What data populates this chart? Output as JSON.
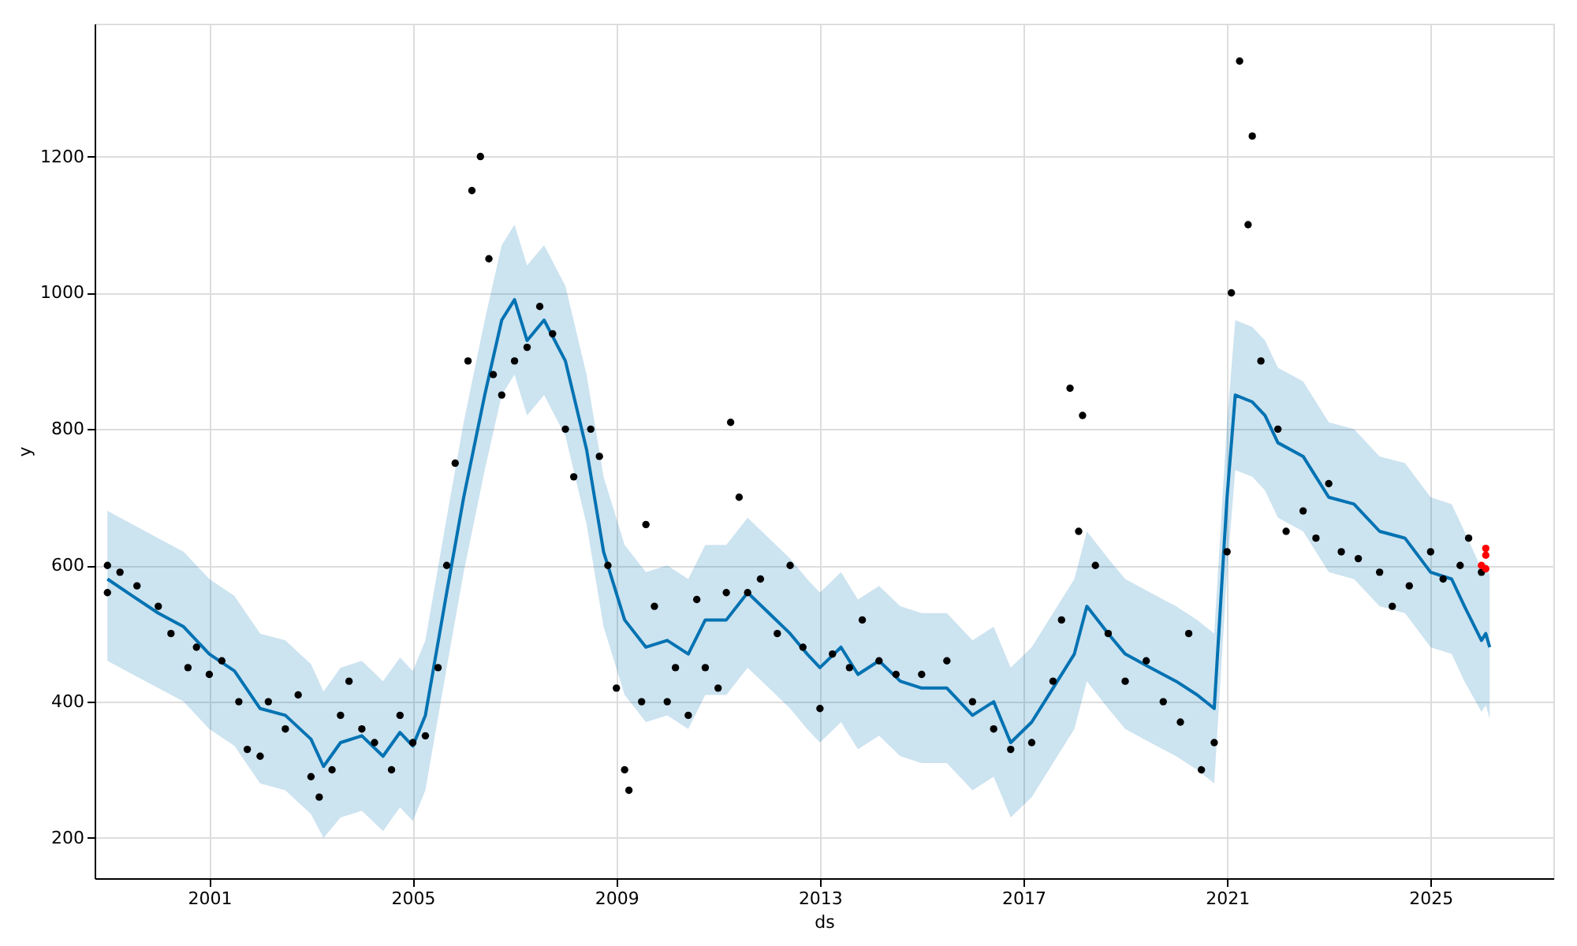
{
  "chart_data": {
    "type": "line",
    "xlabel": "ds",
    "ylabel": "y",
    "xlim": [
      "1998-10",
      "2027-06"
    ],
    "xticks": [
      "2001",
      "2005",
      "2009",
      "2013",
      "2017",
      "2021",
      "2025"
    ],
    "ylim": [
      141,
      1395
    ],
    "yticks": [
      200,
      400,
      600,
      800,
      1000,
      1200
    ],
    "grid": true,
    "series": [
      {
        "color": "#0072b2",
        "line_style": "solid",
        "marker": "none",
        "x": [
          "1999-01",
          "1999-07",
          "2000-01",
          "2000-07",
          "2001-01",
          "2001-07",
          "2002-01",
          "2002-07",
          "2003-01",
          "2003-04",
          "2003-08",
          "2004-01",
          "2004-06",
          "2004-10",
          "2005-01",
          "2005-04",
          "2005-09",
          "2006-01",
          "2006-06",
          "2006-10",
          "2007-01",
          "2007-04",
          "2007-08",
          "2008-01",
          "2008-06",
          "2008-10",
          "2009-03",
          "2009-08",
          "2010-01",
          "2010-06",
          "2010-10",
          "2011-03",
          "2011-08",
          "2012-01",
          "2012-06",
          "2012-10",
          "2013-01",
          "2013-06",
          "2013-10",
          "2014-03",
          "2014-08",
          "2015-01",
          "2015-07",
          "2016-01",
          "2016-06",
          "2016-10",
          "2017-03",
          "2017-08",
          "2018-01",
          "2018-04",
          "2018-09",
          "2019-01",
          "2019-07",
          "2020-01",
          "2020-06",
          "2020-10",
          "2021-01",
          "2021-03",
          "2021-07",
          "2021-10",
          "2022-01",
          "2022-07",
          "2023-01",
          "2023-07",
          "2024-01",
          "2024-07",
          "2025-01",
          "2025-06",
          "2025-09",
          "2026-01",
          "2026-02",
          "2026-03"
        ],
        "values": [
          580,
          555,
          530,
          510,
          470,
          445,
          390,
          380,
          345,
          305,
          340,
          350,
          320,
          355,
          335,
          380,
          560,
          700,
          850,
          960,
          990,
          930,
          960,
          900,
          770,
          620,
          520,
          480,
          490,
          470,
          520,
          520,
          560,
          530,
          500,
          470,
          450,
          480,
          440,
          460,
          430,
          420,
          420,
          380,
          400,
          340,
          370,
          420,
          470,
          540,
          500,
          470,
          450,
          430,
          410,
          390,
          700,
          850,
          840,
          820,
          780,
          760,
          700,
          690,
          650,
          640,
          590,
          580,
          540,
          490,
          500,
          480
        ],
        "lower": [
          460,
          440,
          420,
          400,
          360,
          335,
          280,
          270,
          235,
          200,
          230,
          240,
          210,
          245,
          225,
          270,
          450,
          590,
          740,
          850,
          880,
          820,
          850,
          790,
          660,
          510,
          410,
          370,
          380,
          360,
          410,
          410,
          450,
          420,
          390,
          360,
          340,
          370,
          330,
          350,
          320,
          310,
          310,
          270,
          290,
          230,
          260,
          310,
          360,
          430,
          390,
          360,
          340,
          320,
          300,
          280,
          590,
          740,
          730,
          710,
          670,
          650,
          590,
          580,
          540,
          530,
          480,
          470,
          430,
          385,
          395,
          375
        ],
        "upper": [
          680,
          660,
          640,
          620,
          580,
          555,
          500,
          490,
          455,
          415,
          450,
          460,
          430,
          465,
          445,
          490,
          670,
          810,
          960,
          1070,
          1100,
          1040,
          1070,
          1010,
          880,
          730,
          630,
          590,
          600,
          580,
          630,
          630,
          670,
          640,
          610,
          580,
          560,
          590,
          550,
          570,
          540,
          530,
          530,
          490,
          510,
          450,
          480,
          530,
          580,
          650,
          610,
          580,
          560,
          540,
          520,
          500,
          810,
          960,
          950,
          930,
          890,
          870,
          810,
          800,
          760,
          750,
          700,
          690,
          650,
          595,
          605,
          585
        ]
      },
      {
        "type": "scatter",
        "color": "#000000",
        "marker": "circle",
        "x": [
          "1999-01",
          "1999-01",
          "1999-04",
          "1999-08",
          "2000-01",
          "2000-04",
          "2000-08",
          "2000-10",
          "2001-01",
          "2001-04",
          "2001-08",
          "2001-10",
          "2002-01",
          "2002-03",
          "2002-07",
          "2002-10",
          "2003-01",
          "2003-03",
          "2003-06",
          "2003-08",
          "2003-10",
          "2004-01",
          "2004-04",
          "2004-08",
          "2004-10",
          "2005-01",
          "2005-04",
          "2005-07",
          "2005-09",
          "2005-11",
          "2006-02",
          "2006-03",
          "2006-05",
          "2006-07",
          "2006-08",
          "2006-10",
          "2007-01",
          "2007-04",
          "2007-07",
          "2007-10",
          "2008-01",
          "2008-03",
          "2008-07",
          "2008-09",
          "2008-11",
          "2009-01",
          "2009-03",
          "2009-04",
          "2009-07",
          "2009-08",
          "2009-10",
          "2010-01",
          "2010-03",
          "2010-06",
          "2010-08",
          "2010-10",
          "2011-01",
          "2011-03",
          "2011-04",
          "2011-06",
          "2011-08",
          "2011-11",
          "2012-03",
          "2012-06",
          "2012-09",
          "2013-01",
          "2013-04",
          "2013-08",
          "2013-11",
          "2014-03",
          "2014-07",
          "2015-01",
          "2015-07",
          "2016-01",
          "2016-06",
          "2016-10",
          "2017-03",
          "2017-08",
          "2017-10",
          "2017-12",
          "2018-02",
          "2018-03",
          "2018-06",
          "2018-09",
          "2019-01",
          "2019-06",
          "2019-10",
          "2020-02",
          "2020-04",
          "2020-07",
          "2020-10",
          "2021-01",
          "2021-02",
          "2021-04",
          "2021-06",
          "2021-07",
          "2021-09",
          "2022-01",
          "2022-03",
          "2022-07",
          "2022-10",
          "2023-01",
          "2023-04",
          "2023-08",
          "2024-01",
          "2024-04",
          "2024-08",
          "2025-01",
          "2025-04",
          "2025-08",
          "2025-10",
          "2026-01"
        ],
        "values": [
          560,
          600,
          590,
          570,
          540,
          500,
          450,
          480,
          440,
          460,
          400,
          330,
          320,
          400,
          360,
          410,
          290,
          260,
          300,
          380,
          430,
          360,
          340,
          300,
          380,
          340,
          350,
          450,
          600,
          750,
          900,
          1150,
          1200,
          1050,
          880,
          850,
          900,
          920,
          980,
          940,
          800,
          730,
          800,
          760,
          600,
          420,
          300,
          270,
          400,
          660,
          540,
          400,
          450,
          380,
          550,
          450,
          420,
          560,
          810,
          700,
          560,
          580,
          500,
          600,
          480,
          390,
          470,
          450,
          520,
          460,
          440,
          440,
          460,
          400,
          360,
          330,
          340,
          430,
          520,
          860,
          650,
          820,
          600,
          500,
          430,
          460,
          400,
          370,
          500,
          300,
          340,
          620,
          1000,
          1340,
          1100,
          1230,
          900,
          800,
          650,
          680,
          640,
          720,
          620,
          610,
          590,
          540,
          570,
          620,
          580,
          600,
          640,
          590
        ]
      },
      {
        "type": "scatter",
        "color": "#ff0000",
        "marker": "circle",
        "x": [
          "2026-01",
          "2026-02",
          "2026-02",
          "2026-02"
        ],
        "values": [
          600,
          615,
          625,
          595
        ]
      }
    ]
  }
}
